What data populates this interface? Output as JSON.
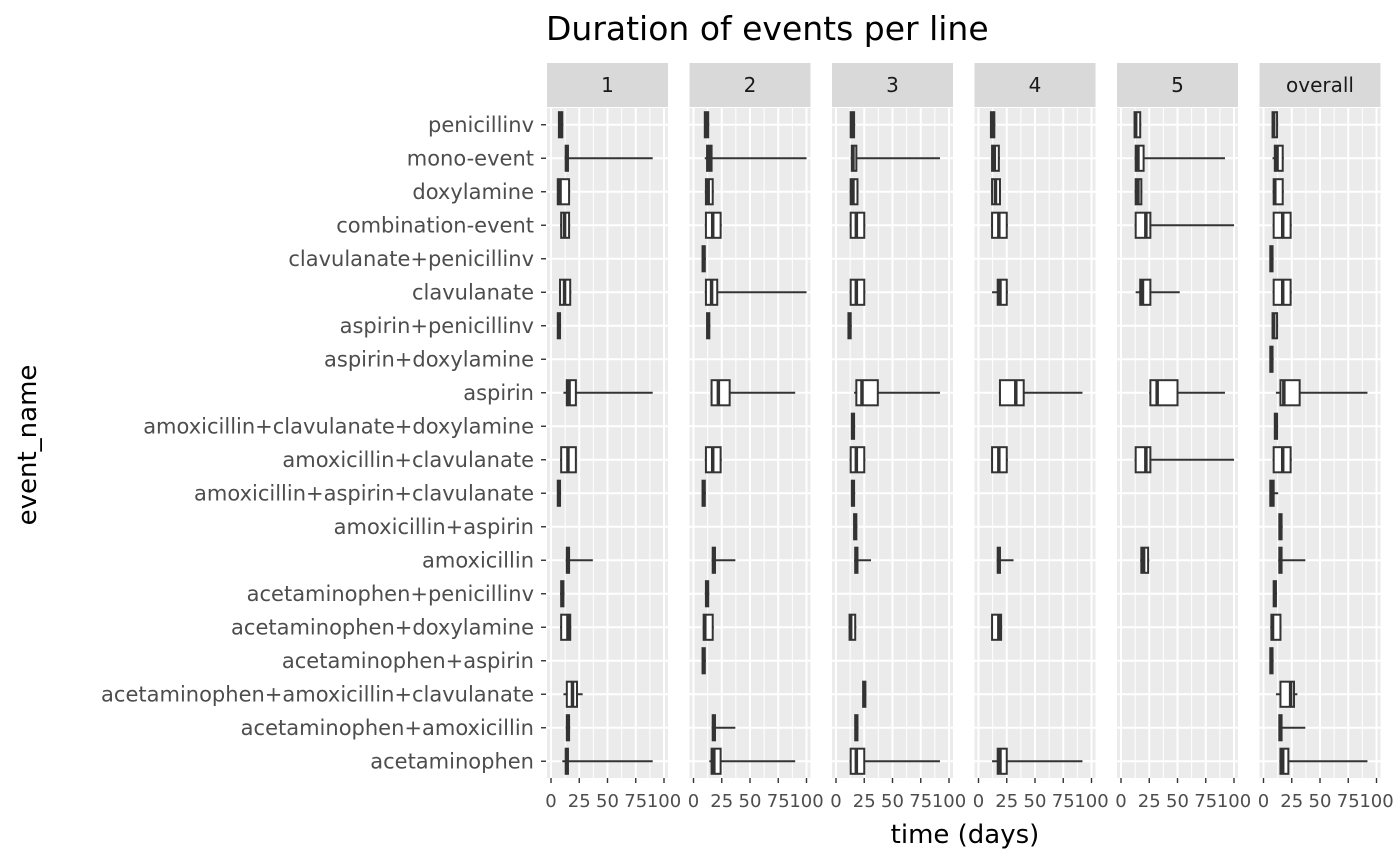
{
  "chart_data": {
    "type": "boxplot",
    "title": "Duration of events per line",
    "xlabel": "time (days)",
    "ylabel": "event_name",
    "xlim": [
      0,
      100
    ],
    "x_ticks": [
      "0",
      "25",
      "50",
      "75",
      "100"
    ],
    "grid": true,
    "legend": "none",
    "categories": [
      "acetaminophen",
      "acetaminophen+amoxicillin",
      "acetaminophen+amoxicillin+clavulanate",
      "acetaminophen+aspirin",
      "acetaminophen+doxylamine",
      "acetaminophen+penicillinv",
      "amoxicillin",
      "amoxicillin+aspirin",
      "amoxicillin+aspirin+clavulanate",
      "amoxicillin+clavulanate",
      "amoxicillin+clavulanate+doxylamine",
      "aspirin",
      "aspirin+doxylamine",
      "aspirin+penicillinv",
      "clavulanate",
      "clavulanate+penicillinv",
      "combination-event",
      "doxylamine",
      "mono-event",
      "penicillinv"
    ],
    "panels": [
      {
        "label": "1",
        "boxes": {
          "penicillinv": [
            7,
            7,
            8,
            10,
            11
          ],
          "mono-event": [
            12,
            13,
            14,
            15,
            90
          ],
          "doxylamine": [
            6,
            6,
            8,
            16,
            17
          ],
          "combination-event": [
            8,
            9,
            12,
            16,
            17
          ],
          "clavulanate": [
            7,
            8,
            12,
            17,
            18
          ],
          "aspirin+penicillinv": [
            6,
            6,
            7,
            8,
            9
          ],
          "aspirin": [
            11,
            14,
            16,
            22,
            90
          ],
          "amoxicillin+clavulanate": [
            8,
            9,
            15,
            22,
            23
          ],
          "amoxicillin+aspirin+clavulanate": [
            6,
            6,
            7,
            8,
            9
          ],
          "amoxicillin": [
            13,
            14,
            15,
            16,
            37
          ],
          "acetaminophen+penicillinv": [
            8,
            9,
            10,
            11,
            12
          ],
          "acetaminophen+doxylamine": [
            8,
            9,
            15,
            17,
            18
          ],
          "acetaminophen+amoxicillin+clavulanate": [
            11,
            14,
            19,
            23,
            28
          ],
          "acetaminophen+amoxicillin": [
            13,
            14,
            15,
            16,
            17
          ],
          "acetaminophen": [
            10,
            13,
            14,
            15,
            90
          ]
        }
      },
      {
        "label": "2",
        "boxes": {
          "penicillinv": [
            10,
            10,
            11,
            13,
            14
          ],
          "mono-event": [
            10,
            12,
            14,
            16,
            100
          ],
          "doxylamine": [
            10,
            11,
            13,
            17,
            18
          ],
          "combination-event": [
            10,
            11,
            17,
            24,
            25
          ],
          "clavulanate+penicillinv": [
            8,
            8,
            9,
            10,
            11
          ],
          "clavulanate": [
            10,
            11,
            16,
            21,
            100
          ],
          "aspirin+penicillinv": [
            12,
            12,
            13,
            14,
            15
          ],
          "aspirin": [
            15,
            16,
            22,
            32,
            90
          ],
          "amoxicillin+clavulanate": [
            10,
            11,
            17,
            24,
            25
          ],
          "amoxicillin+aspirin+clavulanate": [
            8,
            8,
            9,
            10,
            11
          ],
          "amoxicillin": [
            16,
            17,
            18,
            19,
            37
          ],
          "acetaminophen+penicillinv": [
            10,
            11,
            12,
            13,
            14
          ],
          "acetaminophen+doxylamine": [
            8,
            9,
            10,
            17,
            18
          ],
          "acetaminophen+aspirin": [
            8,
            8,
            9,
            10,
            11
          ],
          "acetaminophen+amoxicillin": [
            16,
            17,
            18,
            19,
            37
          ],
          "acetaminophen": [
            14,
            16,
            18,
            24,
            90
          ]
        }
      },
      {
        "label": "3",
        "boxes": {
          "penicillinv": [
            13,
            13,
            14,
            16,
            17
          ],
          "mono-event": [
            13,
            14,
            15,
            18,
            92
          ],
          "doxylamine": [
            12,
            13,
            15,
            19,
            20
          ],
          "combination-event": [
            12,
            13,
            18,
            25,
            26
          ],
          "clavulanate": [
            12,
            13,
            18,
            25,
            26
          ],
          "aspirin+penicillinv": [
            11,
            11,
            12,
            13,
            14
          ],
          "aspirin": [
            16,
            18,
            23,
            37,
            92
          ],
          "amoxicillin+clavulanate+doxylamine": [
            14,
            14,
            15,
            16,
            17
          ],
          "amoxicillin+clavulanate": [
            12,
            13,
            18,
            25,
            26
          ],
          "amoxicillin+aspirin+clavulanate": [
            14,
            14,
            15,
            16,
            17
          ],
          "amoxicillin+aspirin": [
            16,
            16,
            17,
            18,
            19
          ],
          "amoxicillin": [
            16,
            17,
            18,
            19,
            31
          ],
          "acetaminophen+doxylamine": [
            11,
            12,
            13,
            17,
            18
          ],
          "acetaminophen+amoxicillin+clavulanate": [
            24,
            24,
            25,
            26,
            27
          ],
          "acetaminophen+amoxicillin": [
            17,
            17,
            18,
            19,
            20
          ],
          "acetaminophen": [
            12,
            13,
            18,
            25,
            92
          ]
        }
      },
      {
        "label": "4",
        "boxes": {
          "penicillinv": [
            11,
            11,
            12,
            14,
            15
          ],
          "mono-event": [
            11,
            12,
            14,
            18,
            19
          ],
          "doxylamine": [
            11,
            12,
            15,
            19,
            20
          ],
          "combination-event": [
            11,
            12,
            18,
            25,
            26
          ],
          "clavulanate": [
            12,
            17,
            19,
            25,
            26
          ],
          "aspirin": [
            18,
            19,
            33,
            40,
            92
          ],
          "amoxicillin+clavulanate": [
            11,
            12,
            18,
            25,
            26
          ],
          "amoxicillin": [
            16,
            17,
            18,
            19,
            31
          ],
          "acetaminophen+doxylamine": [
            11,
            12,
            18,
            20,
            21
          ],
          "acetaminophen": [
            12,
            17,
            19,
            25,
            92
          ]
        }
      },
      {
        "label": "5",
        "boxes": {
          "penicillinv": [
            12,
            12,
            13,
            17,
            18
          ],
          "mono-event": [
            12,
            13,
            15,
            20,
            92
          ],
          "doxylamine": [
            12,
            13,
            15,
            18,
            19
          ],
          "combination-event": [
            12,
            13,
            22,
            26,
            100
          ],
          "clavulanate": [
            13,
            17,
            19,
            26,
            52
          ],
          "aspirin": [
            25,
            26,
            32,
            50,
            92
          ],
          "amoxicillin+clavulanate": [
            12,
            13,
            22,
            26,
            100
          ],
          "amoxicillin": [
            17,
            18,
            20,
            24,
            25
          ]
        }
      },
      {
        "label": "overall",
        "boxes": {
          "penicillinv": [
            8,
            8,
            9,
            12,
            13
          ],
          "mono-event": [
            8,
            10,
            12,
            17,
            18
          ],
          "doxylamine": [
            8,
            9,
            10,
            17,
            18
          ],
          "combination-event": [
            8,
            9,
            17,
            24,
            25
          ],
          "clavulanate+penicillinv": [
            6,
            6,
            7,
            8,
            9
          ],
          "clavulanate": [
            8,
            9,
            17,
            24,
            25
          ],
          "aspirin+penicillinv": [
            8,
            8,
            9,
            12,
            13
          ],
          "aspirin+doxylamine": [
            6,
            6,
            7,
            8,
            9
          ],
          "aspirin": [
            11,
            15,
            18,
            32,
            92
          ],
          "amoxicillin+clavulanate+doxylamine": [
            10,
            10,
            11,
            12,
            13
          ],
          "amoxicillin+clavulanate": [
            8,
            9,
            17,
            24,
            25
          ],
          "amoxicillin+aspirin+clavulanate": [
            6,
            6,
            8,
            9,
            13
          ],
          "amoxicillin+aspirin": [
            14,
            14,
            15,
            16,
            17
          ],
          "amoxicillin": [
            13,
            14,
            15,
            16,
            37
          ],
          "acetaminophen+penicillinv": [
            9,
            9,
            10,
            11,
            12
          ],
          "acetaminophen+doxylamine": [
            6,
            7,
            8,
            15,
            16
          ],
          "acetaminophen+aspirin": [
            6,
            6,
            7,
            8,
            9
          ],
          "acetaminophen+amoxicillin+clavulanate": [
            11,
            15,
            24,
            27,
            30
          ],
          "acetaminophen+amoxicillin": [
            14,
            14,
            15,
            16,
            37
          ],
          "acetaminophen": [
            14,
            15,
            17,
            22,
            92
          ]
        }
      }
    ]
  },
  "colors": {
    "panel_background": "#ebebeb",
    "strip_background": "#d9d9d9",
    "grid_major": "#ffffff",
    "box_fill": "#ffffff",
    "box_stroke": "#333333",
    "tick_text": "#4d4d4d"
  }
}
